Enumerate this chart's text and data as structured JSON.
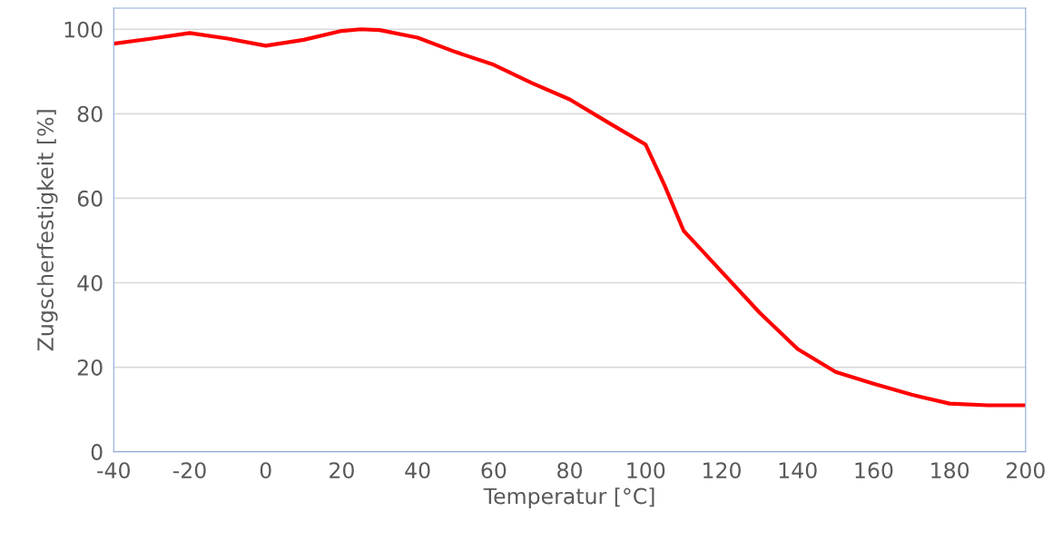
{
  "chart_data": {
    "type": "line",
    "xlabel": "Temperatur [°C]",
    "ylabel": "Zugscherfestigkeit [%]",
    "x": [
      -40,
      -30,
      -20,
      -10,
      0,
      10,
      20,
      25,
      30,
      40,
      50,
      60,
      70,
      80,
      90,
      100,
      105,
      110,
      120,
      130,
      140,
      150,
      160,
      170,
      180,
      190,
      200
    ],
    "series": [
      {
        "color": "#ff0000",
        "values": [
          96.6,
          97.8,
          99.1,
          97.8,
          96.1,
          97.5,
          99.6,
          100,
          99.8,
          98,
          94.6,
          91.6,
          87.3,
          83.4,
          78,
          72.7,
          63,
          52.3,
          42.6,
          32.9,
          24.3,
          18.9,
          16.1,
          13.5,
          11.4,
          11,
          11
        ]
      }
    ],
    "xlim": [
      -40,
      200
    ],
    "xticks": [
      -40,
      -20,
      0,
      20,
      40,
      60,
      80,
      100,
      120,
      140,
      160,
      180,
      200
    ],
    "ylim": [
      0,
      105
    ],
    "yticks": [
      0,
      20,
      40,
      60,
      80,
      100
    ],
    "grid": "y",
    "marker": "none",
    "line_style": "solid"
  }
}
